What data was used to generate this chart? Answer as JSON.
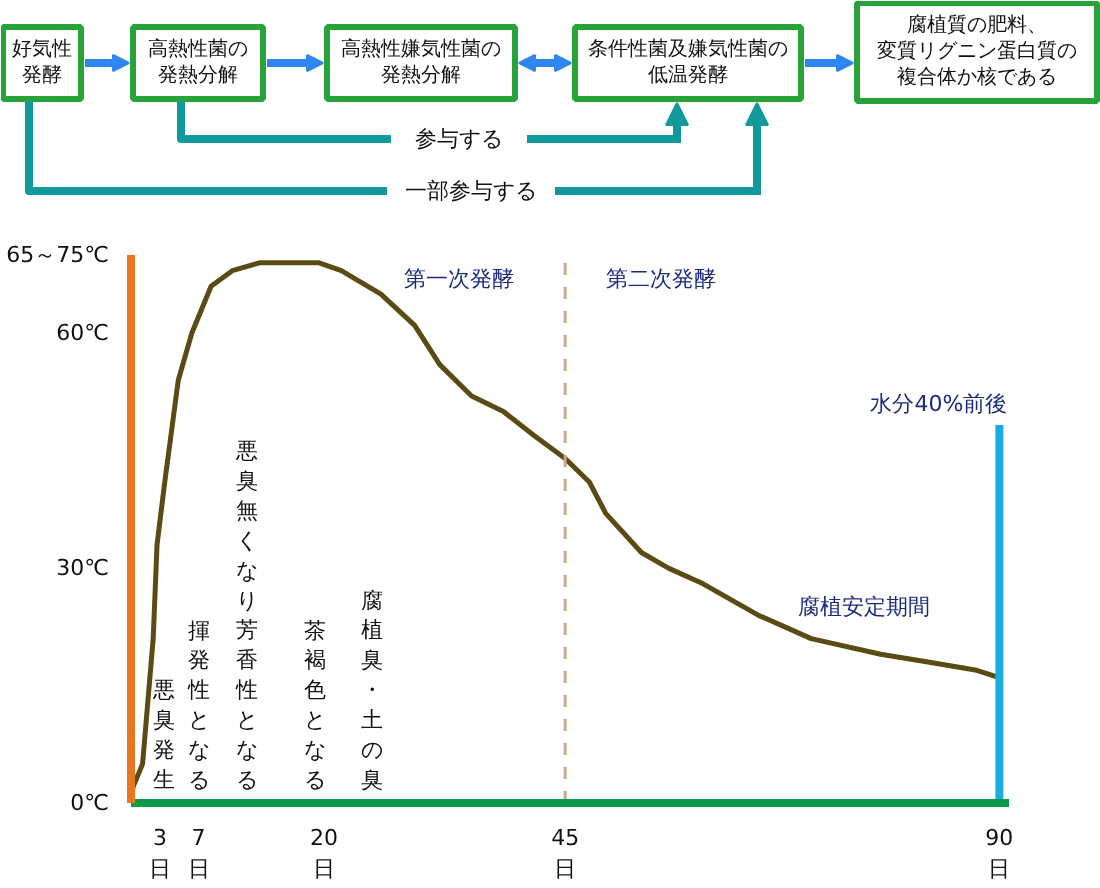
{
  "chart_data": {
    "type": "line",
    "annotations": [
      "好気性発酵",
      "高熱性菌の発熱分解",
      "高熱性嫌気性菌の発熱分解",
      "条件性菌及嫌気性菌の低温発酵",
      "腐植質の肥料、変質リグニン蛋白質の複合体か核である",
      "参与する",
      "一部参与する",
      "悪臭発生",
      "揮発性となる",
      "悪臭無くなり芳香性となる",
      "茶褐色となる",
      "腐植臭・土の臭",
      "第一次発酵",
      "第二次発酵",
      "腐植安定期間"
    ],
    "x": [
      0,
      0.2,
      1.2,
      2.3,
      2.7,
      3.5,
      4.9,
      6.3,
      8.3,
      10.5,
      13.3,
      17.2,
      19.5,
      21.8,
      25.9,
      29.4,
      32,
      35.3,
      38.6,
      41.7,
      45,
      47.5,
      49.2,
      52.9,
      55.7,
      59.3,
      65,
      70.5,
      77.7,
      82.6,
      87.5,
      90
    ],
    "series": [
      {
        "color": "#5a4a14",
        "values": [
          0,
          2,
          5,
          21,
          33,
          41,
          54,
          60,
          66,
          68,
          69,
          69,
          69,
          68,
          65,
          61,
          56,
          52,
          50,
          47,
          44,
          41,
          37,
          32,
          30,
          28,
          24,
          21,
          19,
          18,
          17,
          16
        ]
      }
    ],
    "xlim": [
      0,
      91
    ],
    "xticks": [
      {
        "value": 3,
        "label": "3\n日"
      },
      {
        "value": 7,
        "label": "7\n日"
      },
      {
        "value": 20,
        "label": "20\n日"
      },
      {
        "value": 45,
        "label": "45\n日"
      },
      {
        "value": 90,
        "label": "90\n日"
      }
    ],
    "ylim": [
      0,
      70
    ],
    "yticks": [
      {
        "value": 0,
        "label": "0℃"
      },
      {
        "value": 30,
        "label": "30℃"
      },
      {
        "value": 60,
        "label": "60℃"
      },
      {
        "value": 70,
        "label": "65～75℃"
      }
    ],
    "ref_lines": [
      {
        "axis": "x",
        "value": 45,
        "color": "#c8a888",
        "line_style": "dashed"
      },
      {
        "axis": "x",
        "value": 90,
        "label": "水分40%前後",
        "color": "#1aaee0"
      }
    ]
  }
}
